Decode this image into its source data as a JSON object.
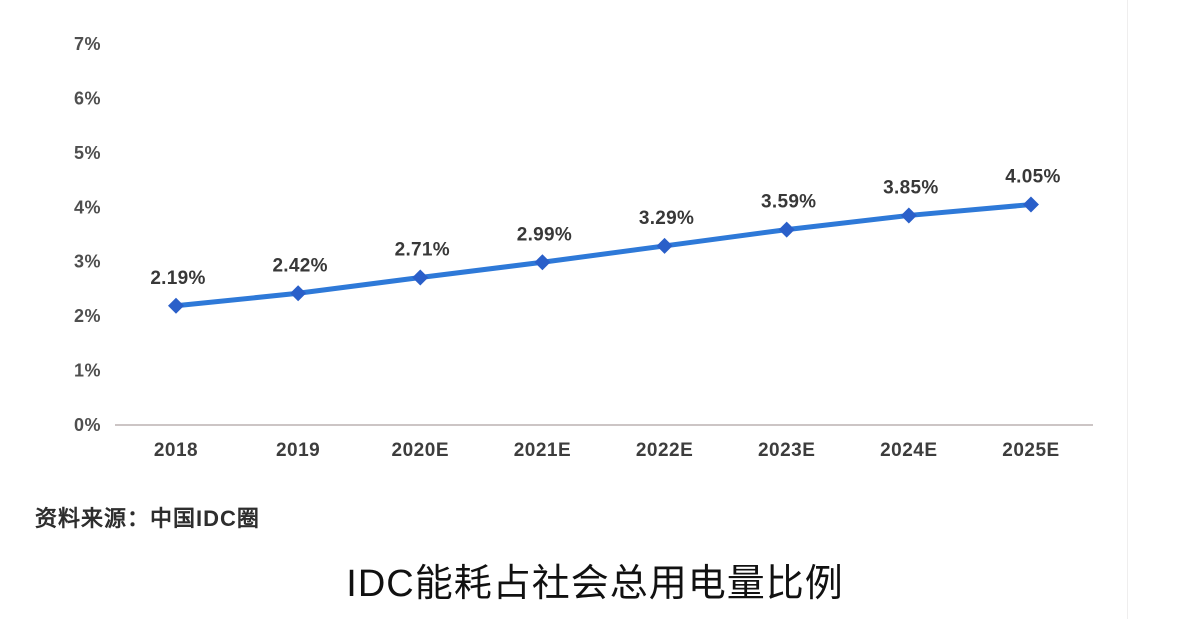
{
  "chart_data": {
    "type": "line",
    "title": "IDC能耗占社会总用电量比例",
    "source": "资料来源：中国IDC圈",
    "categories": [
      "2018",
      "2019",
      "2020E",
      "2021E",
      "2022E",
      "2023E",
      "2024E",
      "2025E"
    ],
    "values": [
      2.19,
      2.42,
      2.71,
      2.99,
      3.29,
      3.59,
      3.85,
      4.05
    ],
    "point_labels": [
      "2.19%",
      "2.42%",
      "2.71%",
      "2.99%",
      "3.29%",
      "3.59%",
      "3.85%",
      "4.05%"
    ],
    "yticks": [
      "0%",
      "1%",
      "2%",
      "3%",
      "4%",
      "5%",
      "6%",
      "7%"
    ],
    "ylim": [
      0,
      7
    ],
    "xlabel": "",
    "ylabel": "",
    "grid": false,
    "legend": "none",
    "marker_shape": "diamond",
    "colors": {
      "line": "#2e79d8",
      "marker": "#2a5fc9",
      "axis": "#ccc5c5",
      "tick_text": "#4f4f4f",
      "xlabel_text": "#3d3d3d",
      "point_label_text": "#383838"
    }
  }
}
